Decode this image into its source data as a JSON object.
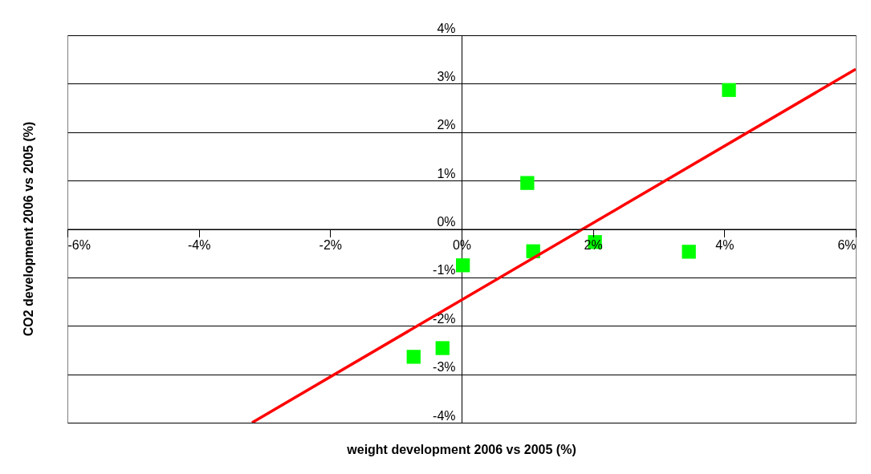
{
  "chart_data": {
    "type": "scatter",
    "xlabel": "weight development 2006 vs 2005 (%)",
    "ylabel": "CO2 development 2006 vs 2005 (%)",
    "xlim": [
      -6,
      6
    ],
    "ylim": [
      -4,
      4
    ],
    "xticks": [
      {
        "value": -6,
        "label": "-6%"
      },
      {
        "value": -4,
        "label": "-4%"
      },
      {
        "value": -2,
        "label": "-2%"
      },
      {
        "value": 0,
        "label": "0%"
      },
      {
        "value": 2,
        "label": "2%"
      },
      {
        "value": 4,
        "label": "4%"
      },
      {
        "value": 6,
        "label": "6%"
      }
    ],
    "yticks": [
      {
        "value": -4,
        "label": "-4%"
      },
      {
        "value": -3,
        "label": "-3%"
      },
      {
        "value": -2,
        "label": "-2%"
      },
      {
        "value": -1,
        "label": "-1%"
      },
      {
        "value": 0,
        "label": "0%"
      },
      {
        "value": 1,
        "label": "1%"
      },
      {
        "value": 2,
        "label": "2%"
      },
      {
        "value": 3,
        "label": "3%"
      },
      {
        "value": 4,
        "label": "4%"
      }
    ],
    "grid": "y",
    "marker": "square",
    "series": [
      {
        "color": "#00ff00",
        "x": [
          1.0,
          4.07,
          1.09,
          2.03,
          3.46,
          0.02,
          -0.73,
          -0.29
        ],
        "values": [
          0.95,
          2.87,
          -0.46,
          -0.27,
          -0.47,
          -0.75,
          -2.64,
          -2.46
        ]
      },
      {
        "type": "line",
        "color": "#ff0000",
        "x": [
          -3.19,
          6
        ],
        "values": [
          -4,
          3.3
        ],
        "line_style": "solid",
        "marker": "none"
      }
    ]
  }
}
